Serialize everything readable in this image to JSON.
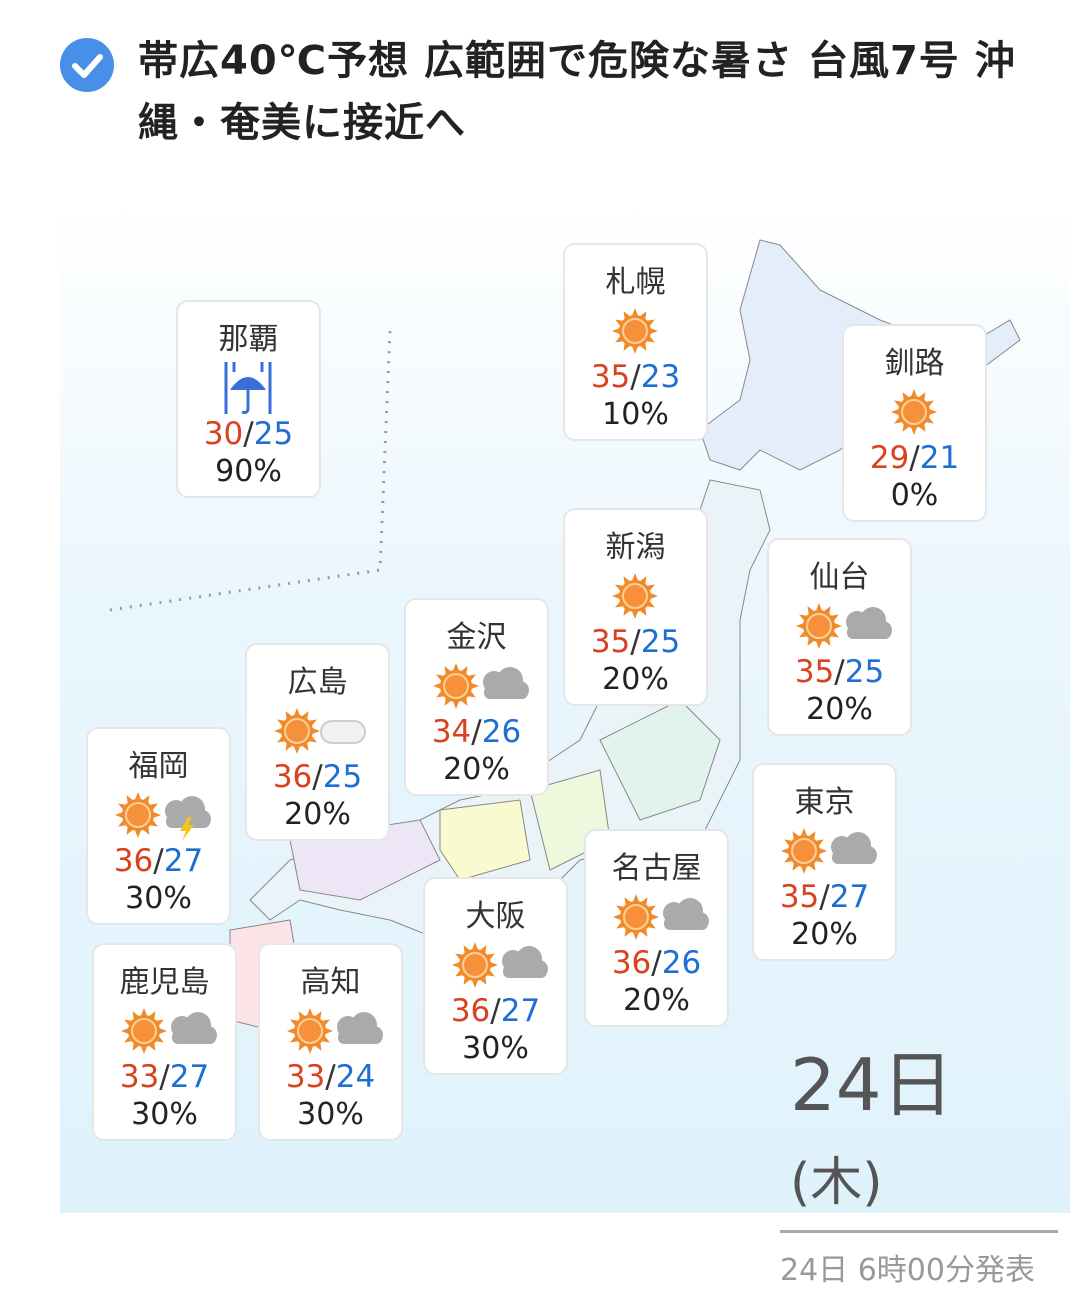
{
  "headline": {
    "icon": "check-circle-icon",
    "text": "帯広40℃予想 広範囲で危険な暑さ 台風7号 沖縄・奄美に接近へ"
  },
  "colors": {
    "high": "#d9421f",
    "low": "#1f6fd3",
    "accent": "#4a8fe7"
  },
  "cities": [
    {
      "name": "那覇",
      "icon": "rain-umbrella",
      "high": "30",
      "low": "25",
      "pop": "90%"
    },
    {
      "name": "札幌",
      "icon": "sunny",
      "high": "35",
      "low": "23",
      "pop": "10%"
    },
    {
      "name": "釧路",
      "icon": "sunny",
      "high": "29",
      "low": "21",
      "pop": "0%"
    },
    {
      "name": "新潟",
      "icon": "sunny",
      "high": "35",
      "low": "25",
      "pop": "20%"
    },
    {
      "name": "仙台",
      "icon": "sunny-cloudy",
      "high": "35",
      "low": "25",
      "pop": "20%"
    },
    {
      "name": "金沢",
      "icon": "sunny-cloudy",
      "high": "34",
      "low": "26",
      "pop": "20%"
    },
    {
      "name": "広島",
      "icon": "sunny-light-cloud",
      "high": "36",
      "low": "25",
      "pop": "20%"
    },
    {
      "name": "福岡",
      "icon": "sunny-thunder",
      "high": "36",
      "low": "27",
      "pop": "30%"
    },
    {
      "name": "東京",
      "icon": "sunny-cloudy",
      "high": "35",
      "low": "27",
      "pop": "20%"
    },
    {
      "name": "名古屋",
      "icon": "sunny-cloudy",
      "high": "36",
      "low": "26",
      "pop": "20%"
    },
    {
      "name": "大阪",
      "icon": "sunny-cloudy",
      "high": "36",
      "low": "27",
      "pop": "30%"
    },
    {
      "name": "鹿児島",
      "icon": "sunny-cloudy",
      "high": "33",
      "low": "27",
      "pop": "30%"
    },
    {
      "name": "高知",
      "icon": "sunny-cloudy",
      "high": "33",
      "low": "24",
      "pop": "30%"
    }
  ],
  "date": {
    "day": "24日",
    "weekday": "(木)",
    "issued": "24日 6時00分発表"
  }
}
